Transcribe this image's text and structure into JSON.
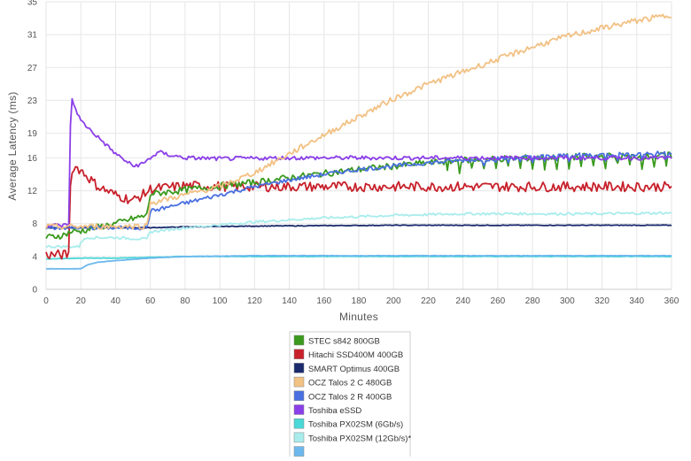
{
  "chart_data": {
    "type": "line",
    "title": "",
    "xlabel": "Minutes",
    "ylabel": "Average Latency (ms)",
    "xlim": [
      0,
      360
    ],
    "ylim": [
      0,
      35
    ],
    "x_ticks": [
      0,
      20,
      40,
      60,
      80,
      100,
      120,
      140,
      160,
      180,
      200,
      220,
      240,
      260,
      280,
      300,
      320,
      340,
      360
    ],
    "y_ticks": [
      0,
      4,
      8,
      12,
      16,
      19,
      23,
      27,
      31,
      35
    ],
    "grid": true,
    "legend_position": "bottom",
    "series": [
      {
        "name": "STEC s842 800GB",
        "color": "#3a9a1e",
        "points": [
          [
            0,
            6.3
          ],
          [
            10,
            6.6
          ],
          [
            14,
            7.0
          ],
          [
            20,
            7.1
          ],
          [
            30,
            7.6
          ],
          [
            40,
            8.0
          ],
          [
            50,
            8.6
          ],
          [
            58,
            9.0
          ],
          [
            60,
            11.6
          ],
          [
            80,
            12.1
          ],
          [
            100,
            12.6
          ],
          [
            120,
            13.0
          ],
          [
            140,
            13.6
          ],
          [
            160,
            14.1
          ],
          [
            180,
            14.6
          ],
          [
            200,
            15.0
          ],
          [
            220,
            15.4
          ],
          [
            240,
            15.7
          ],
          [
            260,
            15.9
          ],
          [
            280,
            16.0
          ],
          [
            300,
            16.1
          ],
          [
            320,
            16.2
          ],
          [
            340,
            16.2
          ],
          [
            360,
            16.3
          ]
        ],
        "noise": 0.4,
        "dips_from": 230,
        "dip_depth": 1.2
      },
      {
        "name": "Hitachi SSD400M 400GB",
        "color": "#c8212b",
        "points": [
          [
            0,
            4.2
          ],
          [
            13,
            4.2
          ],
          [
            14,
            13.0
          ],
          [
            16,
            15.0
          ],
          [
            20,
            14.5
          ],
          [
            25,
            13.5
          ],
          [
            30,
            12.5
          ],
          [
            40,
            11.5
          ],
          [
            50,
            10.8
          ],
          [
            58,
            11.8
          ],
          [
            60,
            12.2
          ],
          [
            80,
            12.6
          ],
          [
            120,
            12.5
          ],
          [
            200,
            12.5
          ],
          [
            280,
            12.5
          ],
          [
            360,
            12.5
          ]
        ],
        "noise": 0.6
      },
      {
        "name": "SMART Optimus 400GB",
        "color": "#1a2a6c",
        "points": [
          [
            0,
            7.5
          ],
          [
            60,
            7.5
          ],
          [
            80,
            7.6
          ],
          [
            120,
            7.7
          ],
          [
            200,
            7.8
          ],
          [
            280,
            7.8
          ],
          [
            360,
            7.8
          ]
        ],
        "noise": 0.04
      },
      {
        "name": "OCZ Talos 2 C 480GB",
        "color": "#f2c184",
        "points": [
          [
            0,
            7.6
          ],
          [
            58,
            7.7
          ],
          [
            60,
            10.5
          ],
          [
            80,
            11.5
          ],
          [
            100,
            12.5
          ],
          [
            120,
            14.2
          ],
          [
            140,
            16.5
          ],
          [
            160,
            18.8
          ],
          [
            180,
            21.0
          ],
          [
            200,
            23.2
          ],
          [
            220,
            25.0
          ],
          [
            240,
            26.5
          ],
          [
            260,
            28.0
          ],
          [
            280,
            29.5
          ],
          [
            300,
            30.8
          ],
          [
            320,
            31.8
          ],
          [
            340,
            32.7
          ],
          [
            360,
            33.4
          ]
        ],
        "noise": 0.35
      },
      {
        "name": "OCZ Talos 2 R 400GB",
        "color": "#4a6fe0",
        "points": [
          [
            0,
            7.5
          ],
          [
            58,
            7.5
          ],
          [
            60,
            9.5
          ],
          [
            80,
            10.5
          ],
          [
            100,
            11.5
          ],
          [
            120,
            12.5
          ],
          [
            140,
            13.3
          ],
          [
            160,
            14.0
          ],
          [
            180,
            14.6
          ],
          [
            200,
            15.0
          ],
          [
            220,
            15.4
          ],
          [
            240,
            15.7
          ],
          [
            260,
            15.9
          ],
          [
            280,
            16.1
          ],
          [
            300,
            16.3
          ],
          [
            320,
            16.4
          ],
          [
            340,
            16.5
          ],
          [
            360,
            16.6
          ]
        ],
        "noise": 0.25,
        "dips_from": 250,
        "dip_depth": 0.6
      },
      {
        "name": "Toshiba eSSD",
        "color": "#8b3fe8",
        "points": [
          [
            0,
            7.8
          ],
          [
            13,
            7.8
          ],
          [
            14,
            20.0
          ],
          [
            15,
            23.0
          ],
          [
            20,
            20.5
          ],
          [
            30,
            18.5
          ],
          [
            40,
            16.5
          ],
          [
            50,
            15.0
          ],
          [
            56,
            15.3
          ],
          [
            60,
            16.0
          ],
          [
            65,
            16.7
          ],
          [
            70,
            16.4
          ],
          [
            80,
            16.0
          ],
          [
            100,
            15.9
          ],
          [
            140,
            16.0
          ],
          [
            200,
            16.0
          ],
          [
            280,
            16.0
          ],
          [
            360,
            16.0
          ]
        ],
        "noise": 0.25
      },
      {
        "name": "Toshiba PX02SM (6Gb/s)",
        "color": "#4bd8d8",
        "points": [
          [
            0,
            3.7
          ],
          [
            20,
            3.8
          ],
          [
            40,
            3.8
          ],
          [
            60,
            3.9
          ],
          [
            80,
            4.0
          ],
          [
            120,
            4.0
          ],
          [
            200,
            4.0
          ],
          [
            280,
            4.0
          ],
          [
            360,
            4.0
          ]
        ],
        "noise": 0.03
      },
      {
        "name": "Toshiba PX02SM (12Gb/s)*",
        "color": "#a9ecec",
        "points": [
          [
            0,
            5.2
          ],
          [
            19,
            5.2
          ],
          [
            20,
            5.8
          ],
          [
            24,
            6.3
          ],
          [
            40,
            6.3
          ],
          [
            58,
            6.1
          ],
          [
            60,
            7.0
          ],
          [
            80,
            7.5
          ],
          [
            120,
            8.2
          ],
          [
            160,
            8.7
          ],
          [
            200,
            9.0
          ],
          [
            240,
            9.2
          ],
          [
            280,
            9.2
          ],
          [
            320,
            9.2
          ],
          [
            360,
            9.3
          ]
        ],
        "noise": 0.15
      },
      {
        "name": "",
        "color": "#6cb8ee",
        "points": [
          [
            0,
            2.5
          ],
          [
            20,
            2.5
          ],
          [
            24,
            3.0
          ],
          [
            30,
            3.3
          ],
          [
            40,
            3.5
          ],
          [
            60,
            3.8
          ],
          [
            80,
            4.0
          ],
          [
            120,
            4.1
          ],
          [
            200,
            4.1
          ],
          [
            280,
            4.1
          ],
          [
            360,
            4.1
          ]
        ],
        "noise": 0.02
      }
    ]
  }
}
